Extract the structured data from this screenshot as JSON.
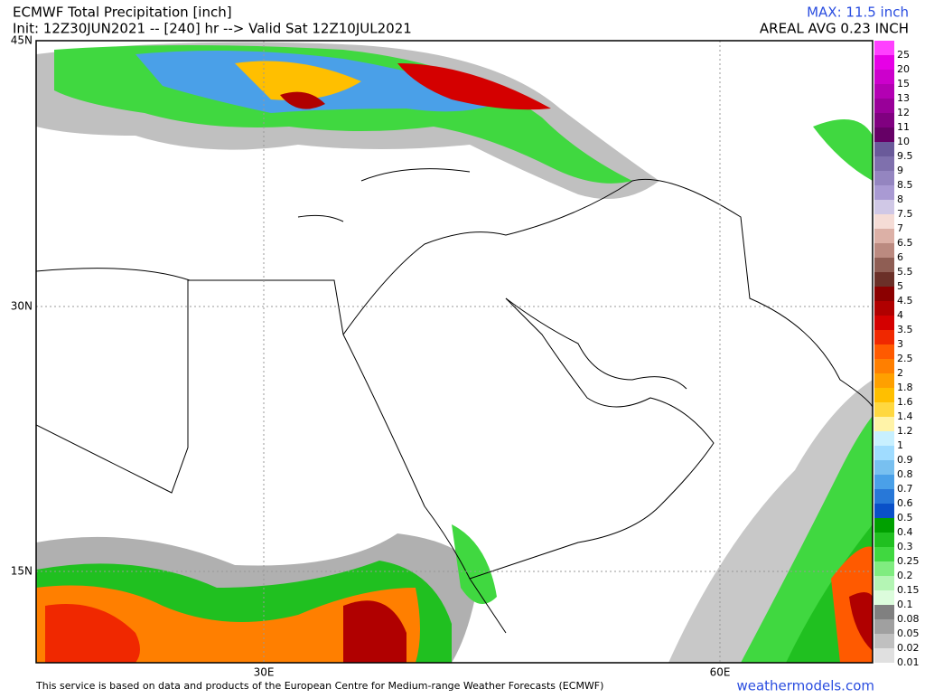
{
  "header": {
    "title": "ECMWF Total Precipitation [inch]",
    "init": "Init: 12Z30JUN2021 -- [240] hr --> Valid Sat 12Z10JUL2021",
    "max": "MAX: 11.5 inch",
    "areal_avg": "AREAL AVG 0.23 INCH"
  },
  "map": {
    "lat_labels": [
      "45N",
      "30N",
      "15N"
    ],
    "lon_labels": [
      "30E",
      "60E"
    ]
  },
  "colorbar": {
    "levels": [
      25,
      20,
      15,
      13,
      12,
      11,
      10,
      9.5,
      9,
      8.5,
      8,
      7.5,
      7,
      6.5,
      6,
      5.5,
      5,
      4.5,
      4,
      3.5,
      3,
      2.5,
      2,
      1.8,
      1.6,
      1.4,
      1.2,
      1,
      0.9,
      0.8,
      0.7,
      0.6,
      0.5,
      0.4,
      0.3,
      0.25,
      0.2,
      0.15,
      0.1,
      0.08,
      0.05,
      0.02,
      0.01
    ],
    "colors": [
      "#ff40ff",
      "#e600e6",
      "#cc00cc",
      "#b300b3",
      "#990099",
      "#800080",
      "#660066",
      "#6a5a9a",
      "#7f70ad",
      "#9485c0",
      "#a99ad3",
      "#d0c8e6",
      "#f5dcd6",
      "#dcb0a6",
      "#bb8a80",
      "#8f5e54",
      "#6b3028",
      "#8b0000",
      "#b00000",
      "#d40000",
      "#f02800",
      "#ff5a00",
      "#ff7f00",
      "#ffa000",
      "#ffbf00",
      "#ffd840",
      "#fff3a8",
      "#c8f0ff",
      "#a0dcff",
      "#78c0f0",
      "#4aa0e8",
      "#2878d8",
      "#0a50c8",
      "#00a000",
      "#20c020",
      "#40d840",
      "#80ec80",
      "#b4f5b4",
      "#dcfcdc",
      "#808080",
      "#a0a0a0",
      "#c0c0c0",
      "#e0e0e0"
    ]
  },
  "footer": {
    "credit": "This service is based on data and products of the European Centre for Medium-range Weather Forecasts (ECMWF)",
    "site": "weathermodels.com"
  }
}
